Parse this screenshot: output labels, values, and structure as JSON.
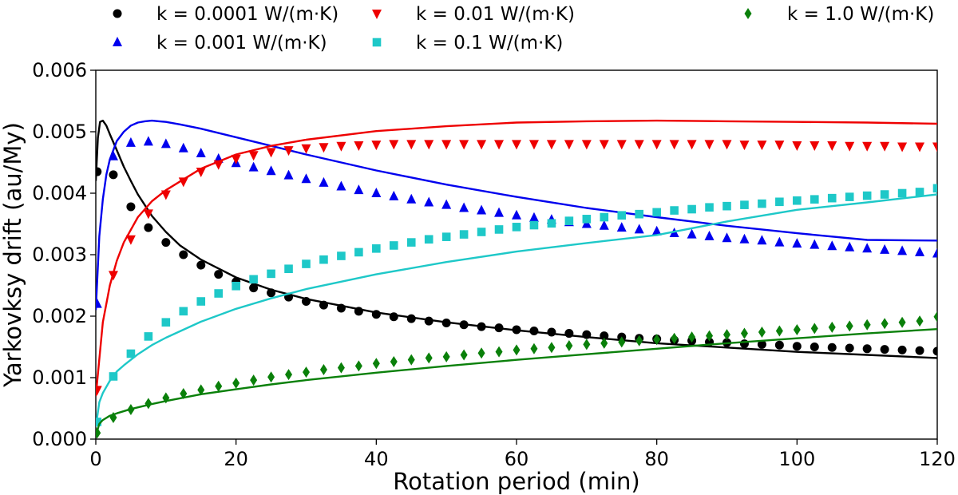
{
  "chart_data": {
    "type": "scatter",
    "title": "",
    "xlabel": "Rotation period (min)",
    "ylabel": "Yarkovksy drift (au/My)",
    "xlim": [
      0,
      120
    ],
    "ylim": [
      0,
      0.006
    ],
    "xticks": [
      0,
      20,
      40,
      60,
      80,
      100,
      120
    ],
    "xtick_labels": [
      "0",
      "20",
      "40",
      "60",
      "80",
      "100",
      "120"
    ],
    "yticks": [
      0,
      0.001,
      0.002,
      0.003,
      0.004,
      0.005,
      0.006
    ],
    "ytick_labels": [
      "0.000",
      "0.001",
      "0.002",
      "0.003",
      "0.004",
      "0.005",
      "0.006"
    ],
    "grid": false,
    "legend_position": "top",
    "series": [
      {
        "name": "k = 0.0001 W/(m·K)",
        "color": "#000000",
        "marker": "circle",
        "points_x": [
          0.2,
          2.5,
          5,
          7.5,
          10,
          12.5,
          15,
          17.5,
          20,
          22.5,
          25,
          27.5,
          30,
          32.5,
          35,
          37.5,
          40,
          42.5,
          45,
          47.5,
          50,
          52.5,
          55,
          57.5,
          60,
          62.5,
          65,
          67.5,
          70,
          72.5,
          75,
          77.5,
          80,
          82.5,
          85,
          87.5,
          90,
          92.5,
          95,
          97.5,
          100,
          102.5,
          105,
          107.5,
          110,
          112.5,
          115,
          117.5,
          120
        ],
        "points_y": [
          0.00435,
          0.0043,
          0.00378,
          0.00344,
          0.0032,
          0.003,
          0.00283,
          0.00268,
          0.00256,
          0.00246,
          0.00238,
          0.00231,
          0.00224,
          0.00218,
          0.00213,
          0.00208,
          0.00203,
          0.00199,
          0.00196,
          0.00192,
          0.00189,
          0.00186,
          0.00183,
          0.00181,
          0.00178,
          0.00176,
          0.00174,
          0.00172,
          0.0017,
          0.00168,
          0.00166,
          0.00164,
          0.00163,
          0.00161,
          0.0016,
          0.00158,
          0.00157,
          0.00155,
          0.00154,
          0.00153,
          0.00151,
          0.0015,
          0.00149,
          0.00148,
          0.00147,
          0.00146,
          0.00145,
          0.00144,
          0.00143
        ],
        "curve_x": [
          0,
          0.3,
          0.6,
          1,
          1.5,
          2,
          3,
          4,
          5,
          6,
          8,
          10,
          12,
          15,
          20,
          25,
          30,
          40,
          50,
          60,
          70,
          80,
          90,
          100,
          110,
          120
        ],
        "curve_y": [
          0.0042,
          0.0049,
          0.00516,
          0.00518,
          0.0051,
          0.00496,
          0.0047,
          0.00443,
          0.0042,
          0.00398,
          0.00363,
          0.00337,
          0.00315,
          0.00292,
          0.00263,
          0.00243,
          0.00228,
          0.00206,
          0.0019,
          0.00177,
          0.00166,
          0.00156,
          0.00149,
          0.00142,
          0.00137,
          0.00132
        ]
      },
      {
        "name": "k = 0.001 W/(m·K)",
        "color": "#0000ee",
        "marker": "triangle-up",
        "points_x": [
          0.2,
          2.5,
          5,
          7.5,
          10,
          12.5,
          15,
          17.5,
          20,
          22.5,
          25,
          27.5,
          30,
          32.5,
          35,
          37.5,
          40,
          42.5,
          45,
          47.5,
          50,
          52.5,
          55,
          57.5,
          60,
          62.5,
          65,
          67.5,
          70,
          72.5,
          75,
          77.5,
          80,
          82.5,
          85,
          87.5,
          90,
          92.5,
          95,
          97.5,
          100,
          102.5,
          105,
          107.5,
          110,
          112.5,
          115,
          117.5,
          120
        ],
        "points_y": [
          0.0022,
          0.0046,
          0.00482,
          0.00484,
          0.0048,
          0.00473,
          0.00465,
          0.00456,
          0.00449,
          0.00442,
          0.00436,
          0.00429,
          0.00423,
          0.00417,
          0.00411,
          0.00405,
          0.004,
          0.00395,
          0.0039,
          0.00385,
          0.00381,
          0.00376,
          0.00372,
          0.00368,
          0.00364,
          0.0036,
          0.00357,
          0.00353,
          0.0035,
          0.00347,
          0.00344,
          0.00341,
          0.00338,
          0.00335,
          0.00333,
          0.0033,
          0.00327,
          0.00325,
          0.00323,
          0.0032,
          0.00318,
          0.00316,
          0.00314,
          0.00312,
          0.0031,
          0.00308,
          0.00306,
          0.00304,
          0.00302
        ],
        "curve_x": [
          0,
          0.5,
          1,
          1.5,
          2,
          3,
          4,
          5,
          6,
          7,
          8,
          9,
          10,
          12,
          15,
          20,
          25,
          30,
          40,
          50,
          60,
          70,
          80,
          90,
          100,
          110,
          120
        ],
        "curve_y": [
          0.0021,
          0.0033,
          0.0039,
          0.0043,
          0.00455,
          0.00485,
          0.005,
          0.0051,
          0.00515,
          0.00517,
          0.00518,
          0.00517,
          0.00516,
          0.00512,
          0.00505,
          0.00491,
          0.00477,
          0.00463,
          0.00437,
          0.00414,
          0.00394,
          0.00376,
          0.00361,
          0.00347,
          0.00335,
          0.00324,
          0.00323
        ]
      },
      {
        "name": "k = 0.01 W/(m·K)",
        "color": "#ee0000",
        "marker": "triangle-down",
        "points_x": [
          0.2,
          2.5,
          5,
          7.5,
          10,
          12.5,
          15,
          17.5,
          20,
          22.5,
          25,
          27.5,
          30,
          32.5,
          35,
          37.5,
          40,
          42.5,
          45,
          47.5,
          50,
          52.5,
          55,
          57.5,
          60,
          62.5,
          65,
          67.5,
          70,
          72.5,
          75,
          77.5,
          80,
          82.5,
          85,
          87.5,
          90,
          92.5,
          95,
          97.5,
          100,
          102.5,
          105,
          107.5,
          110,
          112.5,
          115,
          117.5,
          120
        ],
        "points_y": [
          0.0008,
          0.00267,
          0.00325,
          0.00367,
          0.00398,
          0.00419,
          0.00435,
          0.00447,
          0.00456,
          0.00462,
          0.00467,
          0.0047,
          0.00473,
          0.00475,
          0.00477,
          0.00478,
          0.00479,
          0.0048,
          0.0048,
          0.0048,
          0.0048,
          0.0048,
          0.0048,
          0.0048,
          0.0048,
          0.0048,
          0.0048,
          0.0048,
          0.0048,
          0.0048,
          0.0048,
          0.0048,
          0.0048,
          0.0048,
          0.0048,
          0.0048,
          0.0048,
          0.00479,
          0.00479,
          0.00479,
          0.00478,
          0.00478,
          0.00478,
          0.00477,
          0.00477,
          0.00477,
          0.00476,
          0.00476,
          0.00476
        ],
        "curve_x": [
          0,
          1,
          2,
          3,
          4,
          6,
          8,
          10,
          15,
          20,
          25,
          30,
          40,
          50,
          60,
          70,
          80,
          90,
          100,
          110,
          120
        ],
        "curve_y": [
          0.0007,
          0.0019,
          0.0025,
          0.0029,
          0.0032,
          0.00361,
          0.00387,
          0.00405,
          0.0044,
          0.00463,
          0.00477,
          0.00487,
          0.00501,
          0.00509,
          0.00515,
          0.00517,
          0.00518,
          0.00517,
          0.00516,
          0.00515,
          0.00513
        ]
      },
      {
        "name": "k = 0.1 W/(m·K)",
        "color": "#1ec8c8",
        "marker": "square",
        "points_x": [
          0.2,
          2.5,
          5,
          7.5,
          10,
          12.5,
          15,
          17.5,
          20,
          22.5,
          25,
          27.5,
          30,
          32.5,
          35,
          37.5,
          40,
          42.5,
          45,
          47.5,
          50,
          52.5,
          55,
          57.5,
          60,
          62.5,
          65,
          67.5,
          70,
          72.5,
          75,
          77.5,
          80,
          82.5,
          85,
          87.5,
          90,
          92.5,
          95,
          97.5,
          100,
          102.5,
          105,
          107.5,
          110,
          112.5,
          115,
          117.5,
          120
        ],
        "points_y": [
          0.00028,
          0.00102,
          0.00139,
          0.00167,
          0.0019,
          0.00208,
          0.00224,
          0.00237,
          0.00249,
          0.0026,
          0.00269,
          0.00277,
          0.00285,
          0.00292,
          0.00298,
          0.00304,
          0.0031,
          0.00315,
          0.0032,
          0.00325,
          0.00329,
          0.00333,
          0.00337,
          0.00341,
          0.00345,
          0.00348,
          0.00351,
          0.00355,
          0.00358,
          0.00361,
          0.00364,
          0.00366,
          0.00369,
          0.00372,
          0.00374,
          0.00377,
          0.00379,
          0.00381,
          0.00383,
          0.00386,
          0.00388,
          0.0039,
          0.00392,
          0.00394,
          0.00396,
          0.00398,
          0.004,
          0.00402,
          0.00408
        ],
        "curve_x": [
          0,
          0.5,
          1,
          2,
          3,
          4,
          6,
          8,
          10,
          15,
          20,
          25,
          30,
          40,
          50,
          60,
          70,
          80,
          90,
          100,
          110,
          120
        ],
        "curve_y": [
          0.0002,
          0.0006,
          0.00075,
          0.00095,
          0.0011,
          0.0012,
          0.00138,
          0.00153,
          0.00165,
          0.00191,
          0.00212,
          0.00229,
          0.00244,
          0.00268,
          0.00288,
          0.00305,
          0.00319,
          0.00332,
          0.00354,
          0.00373,
          0.00385,
          0.00398
        ]
      },
      {
        "name": "k = 1.0 W/(m·K)",
        "color": "#0a800a",
        "marker": "diamond",
        "points_x": [
          0.2,
          2.5,
          5,
          7.5,
          10,
          12.5,
          15,
          17.5,
          20,
          22.5,
          25,
          27.5,
          30,
          32.5,
          35,
          37.5,
          40,
          42.5,
          45,
          47.5,
          50,
          52.5,
          55,
          57.5,
          60,
          62.5,
          65,
          67.5,
          70,
          72.5,
          75,
          77.5,
          80,
          82.5,
          85,
          87.5,
          90,
          92.5,
          95,
          97.5,
          100,
          102.5,
          105,
          107.5,
          110,
          112.5,
          115,
          117.5,
          120
        ],
        "points_y": [
          0.0001,
          0.00035,
          0.00048,
          0.00058,
          0.00067,
          0.00074,
          0.0008,
          0.00086,
          0.00091,
          0.00096,
          0.00101,
          0.00105,
          0.00109,
          0.00113,
          0.00116,
          0.00119,
          0.00123,
          0.00126,
          0.00129,
          0.00132,
          0.00134,
          0.00137,
          0.0014,
          0.00142,
          0.00145,
          0.00147,
          0.00149,
          0.00152,
          0.00154,
          0.00156,
          0.00158,
          0.0016,
          0.00162,
          0.00164,
          0.00166,
          0.00168,
          0.0017,
          0.00172,
          0.00174,
          0.00176,
          0.00178,
          0.0018,
          0.00182,
          0.00184,
          0.00186,
          0.00188,
          0.0019,
          0.00192,
          0.00199
        ],
        "curve_x": [
          0,
          0.5,
          1,
          2,
          3,
          5,
          8,
          10,
          15,
          20,
          25,
          30,
          40,
          50,
          60,
          70,
          80,
          90,
          100,
          110,
          120
        ],
        "curve_y": [
          5e-05,
          0.00025,
          0.00031,
          0.00038,
          0.00042,
          0.00049,
          0.00057,
          0.00062,
          0.00073,
          0.00081,
          0.00089,
          0.00096,
          0.00108,
          0.00119,
          0.00129,
          0.00138,
          0.00147,
          0.00156,
          0.00164,
          0.00172,
          0.00179
        ]
      }
    ]
  }
}
